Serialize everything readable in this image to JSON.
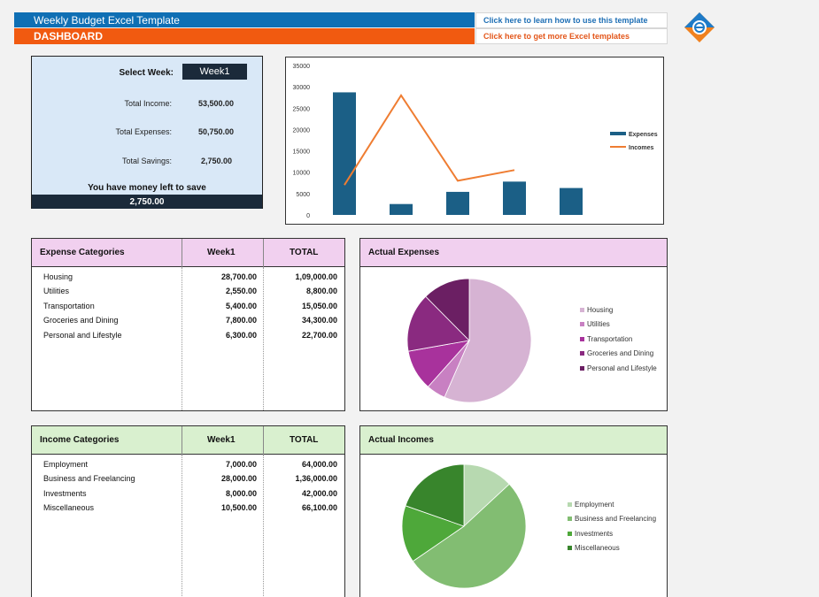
{
  "header": {
    "title": "Weekly Budget Excel Template",
    "dashboard_label": "DASHBOARD",
    "link_learn": "Click here to learn how to use this template",
    "link_more": "Click here to get more Excel templates"
  },
  "summary": {
    "select_week_label": "Select Week:",
    "selected_week": "Week1",
    "total_income_label": "Total Income:",
    "total_income": "53,500.00",
    "total_expenses_label": "Total Expenses:",
    "total_expenses": "50,750.00",
    "total_savings_label": "Total Savings:",
    "total_savings": "2,750.00",
    "message": "You have money left to save",
    "savings_display": "2,750.00"
  },
  "chart_data": {
    "type": "bar",
    "y_ticks": [
      "35000",
      "30000",
      "25000",
      "20000",
      "15000",
      "10000",
      "5000",
      "0"
    ],
    "ylim": [
      0,
      35000
    ],
    "series": [
      {
        "name": "Expenses",
        "type": "bar",
        "color": "#1b5f86",
        "values": [
          28700,
          2550,
          5400,
          7800,
          6300
        ]
      },
      {
        "name": "Incomes",
        "type": "line",
        "color": "#ef7d32",
        "values": [
          7000,
          28000,
          8000,
          10500
        ]
      }
    ],
    "legend_position": "right"
  },
  "expense_table": {
    "headers": [
      "Expense Categories",
      "Week1",
      "TOTAL"
    ],
    "rows": [
      {
        "name": "Housing",
        "week": "28,700.00",
        "total": "1,09,000.00"
      },
      {
        "name": "Utilities",
        "week": "2,550.00",
        "total": "8,800.00"
      },
      {
        "name": "Transportation",
        "week": "5,400.00",
        "total": "15,050.00"
      },
      {
        "name": "Groceries and Dining",
        "week": "7,800.00",
        "total": "34,300.00"
      },
      {
        "name": "Personal and Lifestyle",
        "week": "6,300.00",
        "total": "22,700.00"
      }
    ]
  },
  "income_table": {
    "headers": [
      "Income Categories",
      "Week1",
      "TOTAL"
    ],
    "rows": [
      {
        "name": "Employment",
        "week": "7,000.00",
        "total": "64,000.00"
      },
      {
        "name": "Business and Freelancing",
        "week": "28,000.00",
        "total": "1,36,000.00"
      },
      {
        "name": "Investments",
        "week": "8,000.00",
        "total": "42,000.00"
      },
      {
        "name": "Miscellaneous",
        "week": "10,500.00",
        "total": "66,100.00"
      }
    ]
  },
  "expense_pie": {
    "title": "Actual Expenses",
    "labels": [
      "Housing",
      "Utilities",
      "Transportation",
      "Groceries and Dining",
      "Personal and Lifestyle"
    ],
    "values": [
      28700,
      2550,
      5400,
      7800,
      6300
    ],
    "colors": [
      "#d6b3d3",
      "#c880c2",
      "#a8329c",
      "#8a2a80",
      "#6b1f63"
    ]
  },
  "income_pie": {
    "title": "Actual Incomes",
    "labels": [
      "Employment",
      "Business and Freelancing",
      "Investments",
      "Miscellaneous"
    ],
    "values": [
      7000,
      28000,
      8000,
      10500
    ],
    "colors": [
      "#b7d9b0",
      "#82bd72",
      "#4ea83a",
      "#38852c"
    ]
  }
}
